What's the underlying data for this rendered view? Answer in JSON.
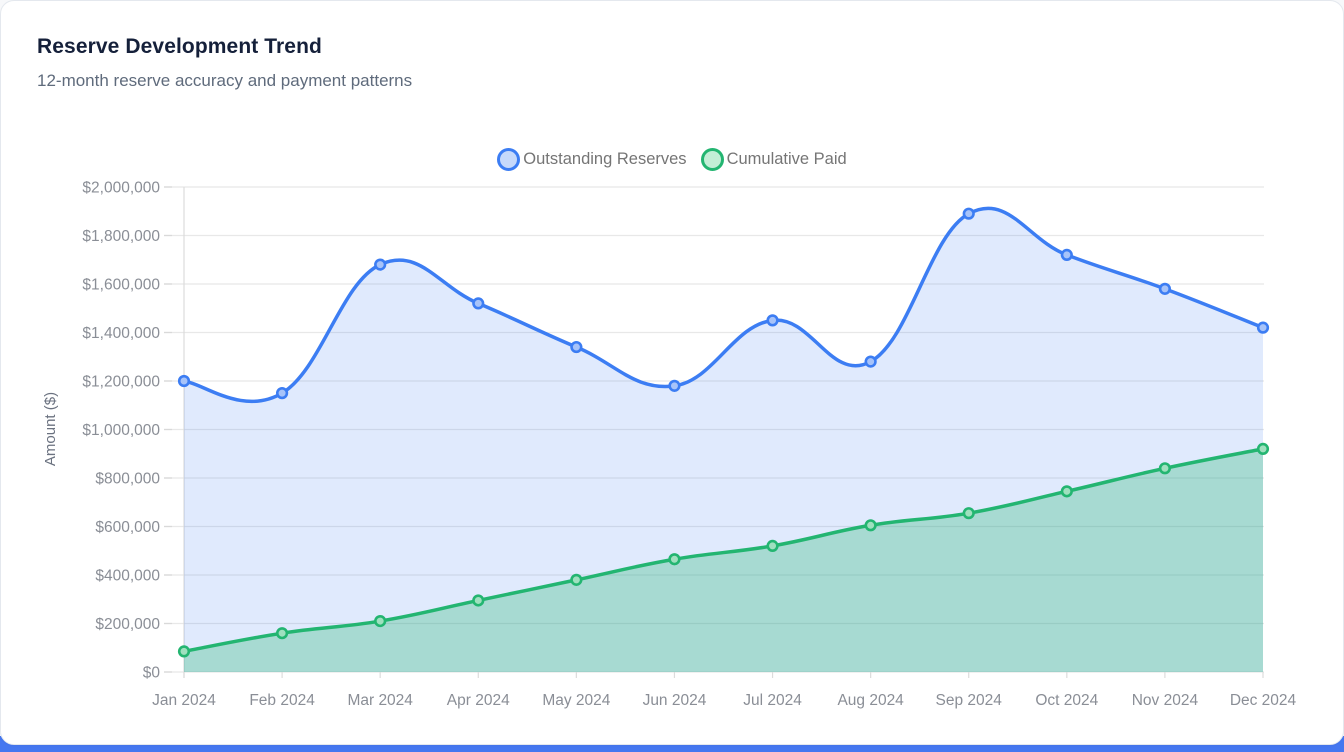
{
  "card": {
    "title": "Reserve Development Trend",
    "subtitle": "12-month reserve accuracy and payment patterns"
  },
  "chart_data": {
    "type": "line",
    "title": "",
    "x": [
      "Jan 2024",
      "Feb 2024",
      "Mar 2024",
      "Apr 2024",
      "May 2024",
      "Jun 2024",
      "Jul 2024",
      "Aug 2024",
      "Sep 2024",
      "Oct 2024",
      "Nov 2024",
      "Dec 2024"
    ],
    "series": [
      {
        "name": "Outstanding Reserves",
        "values": [
          1200000,
          1150000,
          1680000,
          1520000,
          1340000,
          1180000,
          1450000,
          1280000,
          1890000,
          1720000,
          1580000,
          1420000
        ],
        "line_color": "#3c7df3",
        "area_color": "rgba(60,125,243,0.16)",
        "marker_fill": "#a7c3f9",
        "legend_fill": "#c6d9fb"
      },
      {
        "name": "Cumulative Paid",
        "values": [
          85000,
          160000,
          210000,
          295000,
          380000,
          465000,
          520000,
          605000,
          655000,
          745000,
          840000,
          920000
        ],
        "line_color": "#23b571",
        "area_color": "rgba(35,181,113,0.30)",
        "marker_fill": "#9fe0bf",
        "legend_fill": "#c3eed6"
      }
    ],
    "xlabel": "",
    "ylabel": "Amount ($)",
    "ylim": [
      0,
      2000000
    ],
    "ytick_step": 200000,
    "ytick_labels": [
      "$0",
      "$200,000",
      "$400,000",
      "$600,000",
      "$800,000",
      "$1,000,000",
      "$1,200,000",
      "$1,400,000",
      "$1,600,000",
      "$1,800,000",
      "$2,000,000"
    ],
    "grid": "horizontal",
    "legend_position": "top",
    "axis_text_color": "#8a8e96",
    "grid_color": "#e8e8e8"
  },
  "footer": {
    "accent_color": "#4577f0"
  }
}
